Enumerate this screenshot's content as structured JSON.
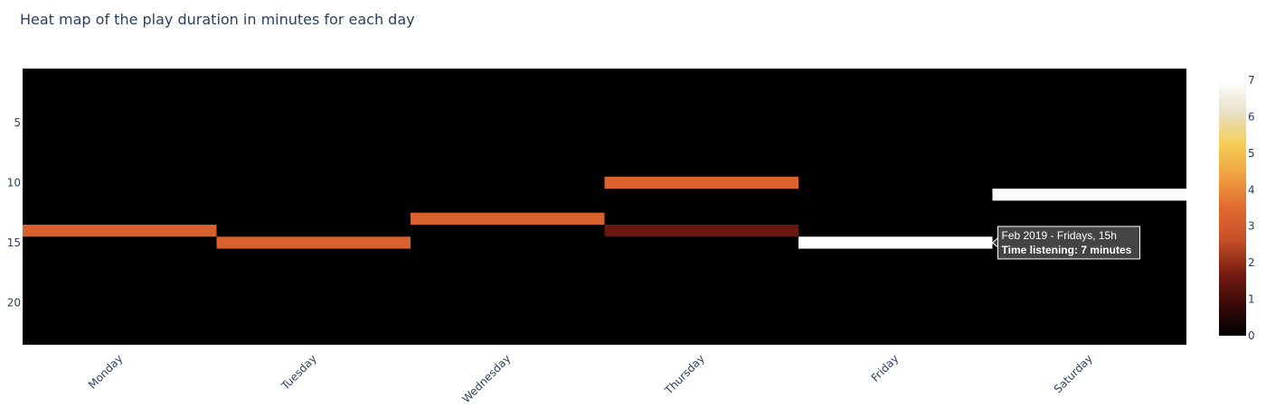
{
  "chart_data": {
    "type": "heatmap",
    "title": "Heat map of the play duration in minutes for each day",
    "xlabel": "",
    "ylabel": "",
    "categories": [
      "Monday",
      "Tuesday",
      "Wednesday",
      "Thursday",
      "Friday",
      "Saturday"
    ],
    "y_range": [
      0.5,
      23.5
    ],
    "y_reversed": true,
    "y_ticks": [
      5,
      10,
      15,
      20
    ],
    "colorscale": "Hot-like (black → dark red → orange → yellow → white)",
    "zmin": 0,
    "zmax": 7,
    "colorbar_ticks": [
      0,
      1,
      2,
      3,
      4,
      5,
      6,
      7
    ],
    "cells": [
      {
        "day": "Monday",
        "hour": 14,
        "value": 3.2
      },
      {
        "day": "Tuesday",
        "hour": 15,
        "value": 3.2
      },
      {
        "day": "Wednesday",
        "hour": 13,
        "value": 3.2
      },
      {
        "day": "Thursday",
        "hour": 10,
        "value": 3.2
      },
      {
        "day": "Thursday",
        "hour": 14,
        "value": 1.5
      },
      {
        "day": "Friday",
        "hour": 15,
        "value": 7
      },
      {
        "day": "Saturday",
        "hour": 11,
        "value": 7
      }
    ],
    "background_value": 0,
    "grid": false
  },
  "tooltip": {
    "line1": "Feb 2019 - Fridays, 15h",
    "line2": "Time listening: 7 minutes"
  },
  "colors": {
    "scale": [
      "#000000",
      "#3a0a0a",
      "#7a1e12",
      "#c8502a",
      "#e06a30",
      "#f0a040",
      "#f5cd55",
      "#e8e0c8",
      "#ffffff"
    ],
    "tick_text": "#2a3f5f",
    "title_text": "#2a3f5f"
  }
}
